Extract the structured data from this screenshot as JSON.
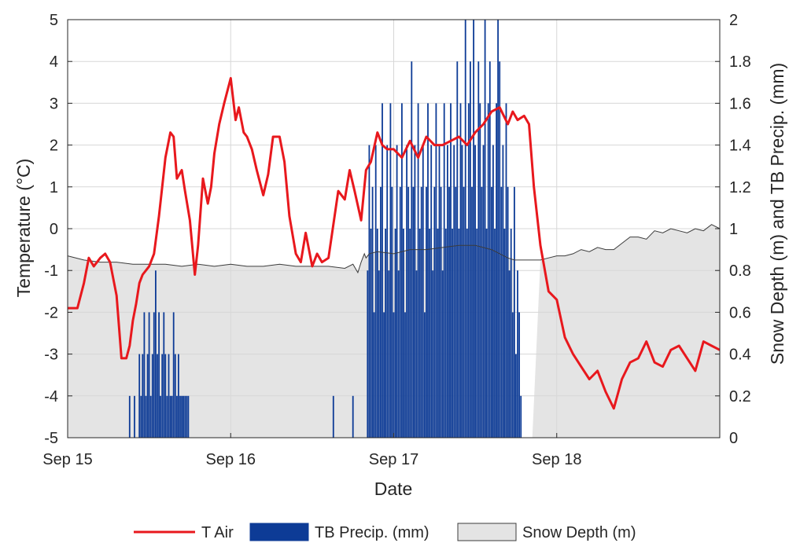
{
  "chart_data": {
    "type": "line",
    "xlabel": "Date",
    "ylabel_left": "Temperature (°C)",
    "ylabel_right": "Snow Depth (m) and TB Precip. (mm)",
    "x_range": [
      "Sep 15",
      "Sep 19"
    ],
    "x_ticks": [
      "Sep 15",
      "Sep 16",
      "Sep 17",
      "Sep 18"
    ],
    "ylim_left": [
      -5,
      5
    ],
    "yticks_left": [
      "5",
      "4",
      "3",
      "2",
      "1",
      "0",
      "-1",
      "-2",
      "-3",
      "-4",
      "-5"
    ],
    "ylim_right": [
      0,
      2
    ],
    "yticks_right": [
      "2",
      "1.8",
      "1.6",
      "1.4",
      "1.2",
      "1",
      "0.8",
      "0.6",
      "0.4",
      "0.2",
      "0"
    ],
    "grid": true,
    "legend_position": "bottom",
    "colors": {
      "t_air": "#e8181d",
      "precip": "#0d3b96",
      "snow": "#e4e4e4",
      "snow_edge": "#3c3c3c"
    },
    "series": [
      {
        "name": "T Air",
        "axis": "left",
        "kind": "line",
        "x": [
          0,
          0.03,
          0.06,
          0.1,
          0.13,
          0.16,
          0.2,
          0.23,
          0.26,
          0.3,
          0.33,
          0.36,
          0.38,
          0.4,
          0.42,
          0.44,
          0.46,
          0.48,
          0.5,
          0.53,
          0.56,
          0.6,
          0.63,
          0.65,
          0.67,
          0.7,
          0.72,
          0.75,
          0.78,
          0.8,
          0.83,
          0.86,
          0.88,
          0.9,
          0.93,
          0.96,
          1.0,
          1.03,
          1.05,
          1.08,
          1.1,
          1.13,
          1.16,
          1.2,
          1.23,
          1.26,
          1.3,
          1.33,
          1.36,
          1.4,
          1.43,
          1.46,
          1.5,
          1.53,
          1.56,
          1.6,
          1.63,
          1.66,
          1.7,
          1.73,
          1.76,
          1.8,
          1.83,
          1.86,
          1.9,
          1.93,
          1.96,
          2.0,
          2.05,
          2.1,
          2.15,
          2.2,
          2.25,
          2.3,
          2.35,
          2.4,
          2.45,
          2.5,
          2.55,
          2.6,
          2.65,
          2.7,
          2.73,
          2.76,
          2.8,
          2.83,
          2.86,
          2.9,
          2.95,
          3.0,
          3.05,
          3.1,
          3.15,
          3.2,
          3.25,
          3.3,
          3.35,
          3.4,
          3.45,
          3.5,
          3.55,
          3.6,
          3.65,
          3.7,
          3.75,
          3.8,
          3.85,
          3.9,
          3.95,
          4.0
        ],
        "values": [
          -1.9,
          -1.9,
          -1.9,
          -1.3,
          -0.7,
          -0.9,
          -0.7,
          -0.6,
          -0.8,
          -1.6,
          -3.1,
          -3.1,
          -2.8,
          -2.2,
          -1.8,
          -1.3,
          -1.1,
          -1.0,
          -0.9,
          -0.6,
          0.3,
          1.7,
          2.3,
          2.2,
          1.2,
          1.4,
          0.9,
          0.2,
          -1.1,
          -0.4,
          1.2,
          0.6,
          1.0,
          1.8,
          2.5,
          3.0,
          3.6,
          2.6,
          2.9,
          2.3,
          2.2,
          1.9,
          1.4,
          0.8,
          1.3,
          2.2,
          2.2,
          1.6,
          0.3,
          -0.6,
          -0.8,
          -0.1,
          -0.9,
          -0.6,
          -0.8,
          -0.7,
          0.1,
          0.9,
          0.7,
          1.4,
          0.9,
          0.2,
          1.4,
          1.6,
          2.3,
          2.0,
          1.9,
          1.9,
          1.7,
          2.1,
          1.7,
          2.2,
          2.0,
          2.0,
          2.1,
          2.2,
          2.0,
          2.3,
          2.5,
          2.8,
          2.9,
          2.5,
          2.8,
          2.6,
          2.7,
          2.5,
          1.0,
          -0.4,
          -1.5,
          -1.7,
          -2.6,
          -3.0,
          -3.3,
          -3.6,
          -3.4,
          -3.9,
          -4.3,
          -3.6,
          -3.2,
          -3.1,
          -2.7,
          -3.2,
          -3.3,
          -2.9,
          -2.8,
          -3.1,
          -3.4,
          -2.7,
          -2.8,
          -2.9
        ]
      },
      {
        "name": "TB Precip. (mm)",
        "axis": "right",
        "kind": "bar",
        "x": [
          0.38,
          0.41,
          0.44,
          0.45,
          0.46,
          0.47,
          0.48,
          0.49,
          0.5,
          0.51,
          0.52,
          0.53,
          0.54,
          0.55,
          0.56,
          0.57,
          0.58,
          0.59,
          0.6,
          0.61,
          0.62,
          0.63,
          0.64,
          0.65,
          0.66,
          0.67,
          0.68,
          0.69,
          0.7,
          0.71,
          0.72,
          0.73,
          0.74,
          1.63,
          1.75,
          1.84,
          1.85,
          1.86,
          1.87,
          1.88,
          1.89,
          1.9,
          1.91,
          1.92,
          1.93,
          1.94,
          1.95,
          1.96,
          1.97,
          1.98,
          1.99,
          2.0,
          2.01,
          2.02,
          2.03,
          2.04,
          2.05,
          2.06,
          2.07,
          2.08,
          2.09,
          2.1,
          2.11,
          2.12,
          2.13,
          2.14,
          2.15,
          2.16,
          2.17,
          2.18,
          2.19,
          2.2,
          2.21,
          2.22,
          2.23,
          2.24,
          2.25,
          2.26,
          2.27,
          2.28,
          2.29,
          2.3,
          2.31,
          2.32,
          2.33,
          2.34,
          2.35,
          2.36,
          2.37,
          2.38,
          2.39,
          2.4,
          2.41,
          2.42,
          2.43,
          2.44,
          2.45,
          2.46,
          2.47,
          2.48,
          2.49,
          2.5,
          2.51,
          2.52,
          2.53,
          2.54,
          2.55,
          2.56,
          2.57,
          2.58,
          2.59,
          2.6,
          2.61,
          2.62,
          2.63,
          2.64,
          2.65,
          2.66,
          2.67,
          2.68,
          2.69,
          2.7,
          2.71,
          2.72,
          2.73,
          2.74,
          2.75,
          2.76,
          2.77,
          2.78
        ],
        "values": [
          0.2,
          0.2,
          0.4,
          0.2,
          0.4,
          0.6,
          0.2,
          0.4,
          0.6,
          0.2,
          0.4,
          0.6,
          0.8,
          0.4,
          0.6,
          0.2,
          0.4,
          0.6,
          0.4,
          0.2,
          0.4,
          0.2,
          0.2,
          0.6,
          0.4,
          0.2,
          0.4,
          0.2,
          0.2,
          0.2,
          0.2,
          0.2,
          0.2,
          0.2,
          0.2,
          0.8,
          1.4,
          1.0,
          1.2,
          0.6,
          1.4,
          1.0,
          0.8,
          1.2,
          1.6,
          0.6,
          1.0,
          1.4,
          0.8,
          1.6,
          1.2,
          0.6,
          1.0,
          1.4,
          0.8,
          1.2,
          1.6,
          1.0,
          0.6,
          1.4,
          1.2,
          1.0,
          1.8,
          1.2,
          1.4,
          0.8,
          1.6,
          1.0,
          1.2,
          1.4,
          0.6,
          1.2,
          1.6,
          1.0,
          1.4,
          0.8,
          1.2,
          1.6,
          1.0,
          1.4,
          1.2,
          0.8,
          1.6,
          1.0,
          1.4,
          1.2,
          1.6,
          1.0,
          1.4,
          1.2,
          1.8,
          1.0,
          1.6,
          1.4,
          1.2,
          2.0,
          1.0,
          1.6,
          1.8,
          1.2,
          2.0,
          1.4,
          1.0,
          1.8,
          1.6,
          1.2,
          1.4,
          2.0,
          1.0,
          1.6,
          1.8,
          1.2,
          1.4,
          1.0,
          1.6,
          2.0,
          1.8,
          1.2,
          1.4,
          1.0,
          1.6,
          1.2,
          0.8,
          1.0,
          0.6,
          1.2,
          0.4,
          0.8,
          0.6,
          0.2
        ]
      },
      {
        "name": "Snow Depth (m)",
        "axis": "right",
        "kind": "area",
        "x": [
          0,
          0.1,
          0.2,
          0.3,
          0.4,
          0.5,
          0.6,
          0.7,
          0.8,
          0.9,
          1.0,
          1.1,
          1.2,
          1.3,
          1.4,
          1.5,
          1.6,
          1.7,
          1.75,
          1.78,
          1.8,
          1.82,
          1.83,
          1.85,
          1.9,
          2.0,
          2.1,
          2.2,
          2.3,
          2.4,
          2.5,
          2.6,
          2.65,
          2.7,
          2.74,
          2.75,
          2.8,
          2.82,
          2.85,
          2.9,
          2.95,
          3.0,
          3.05,
          3.1,
          3.15,
          3.2,
          3.25,
          3.3,
          3.35,
          3.4,
          3.45,
          3.5,
          3.55,
          3.6,
          3.65,
          3.7,
          3.75,
          3.8,
          3.85,
          3.9,
          3.95,
          4.0
        ],
        "values": [
          0.87,
          0.85,
          0.84,
          0.84,
          0.83,
          0.83,
          0.83,
          0.82,
          0.83,
          0.82,
          0.83,
          0.82,
          0.82,
          0.83,
          0.82,
          0.82,
          0.82,
          0.81,
          0.83,
          0.79,
          0.84,
          0.88,
          0.86,
          0.88,
          0.89,
          0.88,
          0.9,
          0.9,
          0.91,
          0.92,
          0.92,
          0.9,
          0.88,
          0.86,
          0.85,
          0.0,
          0.0,
          0.0,
          0.0,
          0.85,
          0.86,
          0.87,
          0.87,
          0.88,
          0.9,
          0.89,
          0.91,
          0.9,
          0.9,
          0.93,
          0.96,
          0.96,
          0.95,
          0.99,
          0.98,
          1.0,
          0.99,
          0.98,
          1.0,
          0.99,
          1.02,
          1.0
        ]
      }
    ]
  },
  "legend": {
    "t_air": "T Air",
    "precip": "TB Precip. (mm)",
    "snow": "Snow Depth (m)"
  }
}
